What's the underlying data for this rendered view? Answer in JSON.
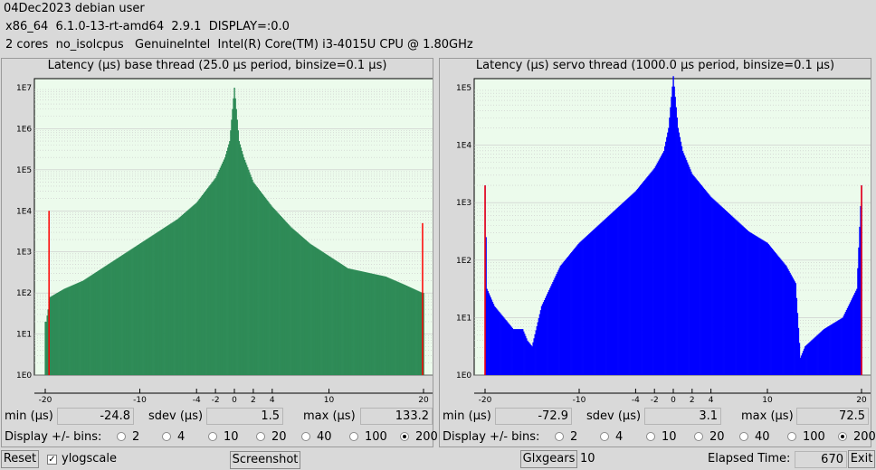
{
  "header": {
    "line1": "04Dec2023 debian user",
    "line2": "x86_64  6.1.0-13-rt-amd64  2.9.1  DISPLAY=:0.0",
    "line3": "2 cores  no_isolcpus   GenuineIntel  Intel(R) Core(TM) i3-4015U CPU @ 1.80GHz"
  },
  "colors": {
    "base_fill": "#2e8b57",
    "servo_fill": "#0000ff",
    "plot_bg": "#ecfbec",
    "limit_line": "#ff0000"
  },
  "base": {
    "title": "Latency (µs) base thread (25.0 µs period, binsize=0.1 µs)",
    "min_label": "min (µs)",
    "min": "-24.8",
    "sdev_label": "sdev (µs)",
    "sdev": "1.5",
    "max_label": "max (µs)",
    "max": "133.2",
    "bins_label": "Display +/- bins:",
    "bins": [
      "2",
      "4",
      "10",
      "20",
      "40",
      "100",
      "200"
    ],
    "bins_selected": "200"
  },
  "servo": {
    "title": "Latency (µs) servo thread (1000.0 µs period, binsize=0.1 µs)",
    "min_label": "min (µs)",
    "min": "-72.9",
    "sdev_label": "sdev (µs)",
    "sdev": "3.1",
    "max_label": "max (µs)",
    "max": "72.5",
    "bins_label": "Display +/- bins:",
    "bins": [
      "2",
      "4",
      "10",
      "20",
      "40",
      "100",
      "200"
    ],
    "bins_selected": "200"
  },
  "footer": {
    "reset_label": "Reset",
    "ylogscale_label": "ylogscale",
    "ylogscale_checked": true,
    "screenshot_label": "Screenshot",
    "glxgears_label": "Glxgears",
    "glxgears_value": "10",
    "elapsed_label": "Elapsed Time:",
    "elapsed_value": "670",
    "exit_label": "Exit"
  },
  "chart_data": [
    {
      "type": "area",
      "title": "Latency (µs) base thread (25.0 µs period, binsize=0.1 µs)",
      "yscale": "log",
      "xlim": [
        -20,
        20
      ],
      "ylim_exponent": [
        0,
        7
      ],
      "x_ticks": [
        "-20",
        "-10",
        "-4",
        "-2",
        "0",
        "2",
        "4",
        "10",
        "20"
      ],
      "y_ticks": [
        "1E0",
        "1E1",
        "1E2",
        "1E3",
        "1E4",
        "1E5",
        "1E6",
        "1E7"
      ],
      "series": [
        {
          "x": [
            -19.9,
            -19.5,
            -18,
            -16,
            -14,
            -12,
            -10,
            -8,
            -6,
            -4,
            -2,
            -1,
            -0.5,
            0,
            0.5,
            1,
            2,
            4,
            6,
            8,
            10,
            12,
            14,
            16,
            18,
            19.9
          ],
          "log10": [
            1.3,
            1.9,
            2.1,
            2.3,
            2.6,
            2.9,
            3.2,
            3.5,
            3.8,
            4.2,
            4.8,
            5.3,
            5.7,
            7.0,
            5.7,
            5.3,
            4.7,
            4.1,
            3.6,
            3.2,
            2.9,
            2.6,
            2.5,
            2.4,
            2.2,
            2.0
          ]
        }
      ],
      "limit_markers": [
        {
          "x": -19.6,
          "log10": 4.0
        },
        {
          "x": 19.9,
          "log10": 3.7
        }
      ]
    },
    {
      "type": "area",
      "title": "Latency (µs) servo thread (1000.0 µs period, binsize=0.1 µs)",
      "yscale": "log",
      "xlim": [
        -20,
        20
      ],
      "ylim_exponent": [
        0,
        5
      ],
      "x_ticks": [
        "-20",
        "-10",
        "-4",
        "-2",
        "0",
        "2",
        "4",
        "10",
        "20"
      ],
      "y_ticks": [
        "1E0",
        "1E1",
        "1E2",
        "1E3",
        "1E4",
        "1E5"
      ],
      "series": [
        {
          "x": [
            -20,
            -19.8,
            -19,
            -18,
            -17,
            -16,
            -15.5,
            -15,
            -14,
            -12,
            -10,
            -8,
            -6,
            -4,
            -2,
            -1,
            -0.5,
            0,
            0.5,
            1,
            2,
            4,
            6,
            8,
            10,
            12,
            13,
            13.5,
            14,
            16,
            18,
            19.5,
            20
          ],
          "log10": [
            3.3,
            1.5,
            1.2,
            1.0,
            0.8,
            0.8,
            0.6,
            0.5,
            1.2,
            1.9,
            2.3,
            2.6,
            2.9,
            3.2,
            3.6,
            3.9,
            4.3,
            5.2,
            4.3,
            3.9,
            3.5,
            3.1,
            2.8,
            2.5,
            2.3,
            1.9,
            1.6,
            0.3,
            0.5,
            0.8,
            1.0,
            1.5,
            3.3
          ]
        }
      ],
      "limit_markers": [
        {
          "x": -20,
          "log10": 3.3
        },
        {
          "x": 20,
          "log10": 3.3
        }
      ]
    }
  ]
}
